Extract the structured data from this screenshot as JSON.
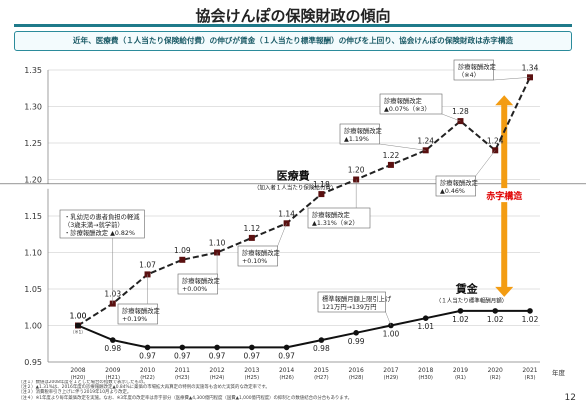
{
  "page": {
    "title": "協会けんぽの保険財政の傾向",
    "subtitle": "近年、医療費（１人当たり保険給付費）の伸びが賃金（１人当たり標準報酬）の伸びを上回り、協会けんぽの保険財政は赤字構造",
    "page_number": "12",
    "footnotes": [
      "（注１）数値は2008年度を１とした場合の指数で表示したもの。",
      "（注２）▲1.31%は、2016年度の診療報酬改定▲0.84%に薬価の市場拡大再算定の特例の実施等も含めた実質的な改定率です。",
      "（注３）消費税率引き上げに伴う2019年10月より改定。",
      "（注４）※1年度より毎年薬価改定を実施。なお、※3年度の改定率は赤字部分（医療費▲4,300億円程度（国費▲1,000億円程度）の抑制との数値結合の分合もあります。"
    ]
  },
  "colors": {
    "medical": "#222222",
    "wage": "#111111",
    "deficit": "#f39c12",
    "deficit_text": "#e00000",
    "marker": "#5a1010"
  },
  "chart_data": {
    "type": "line",
    "x_unit": "年度",
    "x": [
      "2008\n(H20)",
      "2009\n(H21)",
      "2010\n(H22)",
      "2011\n(H23)",
      "2012\n(H24)",
      "2013\n(H25)",
      "2014\n(H26)",
      "2015\n(H27)",
      "2016\n(H28)",
      "2017\n(H29)",
      "2018\n(H30)",
      "2019\n(R1)",
      "2020\n(R2)",
      "2021\n(R3)"
    ],
    "ylim": [
      0.95,
      1.35
    ],
    "yticks": [
      "0.95",
      "1.00",
      "1.05",
      "1.10",
      "1.15",
      "1.20",
      "1.25",
      "1.30",
      "1.35"
    ],
    "grid": true,
    "series": [
      {
        "name": "医療費",
        "sublabel": "（加入者１人当たり保険給付費）",
        "style": "dashed",
        "values": [
          1.0,
          1.03,
          1.07,
          1.09,
          1.1,
          1.12,
          1.14,
          1.18,
          1.2,
          1.22,
          1.24,
          1.28,
          1.24,
          1.34
        ],
        "labels": [
          "1.00",
          "1.03",
          "1.07",
          "1.09",
          "1.10",
          "1.12",
          "1.14",
          "1.18",
          "1.20",
          "1.22",
          "1.24",
          "1.28",
          "1.24",
          "1.34"
        ]
      },
      {
        "name": "賃金",
        "sublabel": "（１人当たり標準報酬月額）",
        "style": "solid",
        "values": [
          1.0,
          0.98,
          0.97,
          0.97,
          0.97,
          0.97,
          0.97,
          0.98,
          0.99,
          1.0,
          1.01,
          1.02,
          1.02,
          1.02
        ],
        "labels": [
          "",
          "0.98",
          "0.97",
          "0.97",
          "0.97",
          "0.97",
          "0.97",
          "0.98",
          "0.99",
          "1.00",
          "1.01",
          "1.02",
          "1.02",
          "1.02"
        ]
      }
    ],
    "deficit_label": "赤字構造",
    "annotations": [
      {
        "idx": 1,
        "lines": [
          "・乳幼児の患者負担の軽減",
          "（3歳未満→就学前）",
          "・診療報酬改定 ▲0.82%"
        ]
      },
      {
        "idx": 2,
        "lines": [
          "診療報酬改定",
          "+0.19%"
        ]
      },
      {
        "idx": 4,
        "lines": [
          "診療報酬改定",
          "+0.00%"
        ]
      },
      {
        "idx": 6,
        "lines": [
          "診療報酬改定",
          "+0.10%"
        ]
      },
      {
        "idx": 8,
        "lines": [
          "診療報酬改定",
          "▲1.31%（※2）"
        ]
      },
      {
        "idx": 10,
        "lines": [
          "診療報酬改定",
          "▲1.19%"
        ]
      },
      {
        "idx": 11,
        "lines": [
          "診療報酬改定",
          "▲0.07%（※3）"
        ]
      },
      {
        "idx": 12,
        "lines": [
          "診療報酬改定",
          "▲0.46%"
        ]
      },
      {
        "idx": 13,
        "lines": [
          "診療報酬改定",
          "（※4）"
        ]
      },
      {
        "idx": 9,
        "lines": [
          "標準報酬月額上限引上げ",
          "121万円→139万円"
        ]
      }
    ],
    "first_point_note": "（※1）"
  }
}
